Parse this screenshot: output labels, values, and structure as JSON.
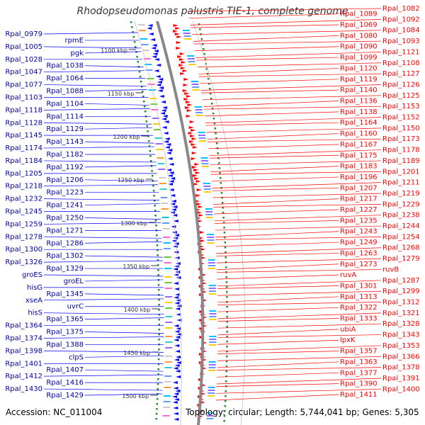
{
  "title": "Rhodopseudomonas palustris TIE-1, complete genome",
  "accession_text": "Accession: NC_011004",
  "topology_text": "Topology: circular; Length: 5,744,041 bp; Genes: 5,305",
  "colors": {
    "forward_strand": "#ff0000",
    "reverse_strand": "#0000ff",
    "forward_label": "#ff0000",
    "reverse_label": "#0000aa",
    "backbone": "#888888",
    "gc_ticks": "#228b22"
  },
  "kbp_ticks": [
    "1100 kbp",
    "1150 kbp",
    "1200 kbp",
    "1250 kbp",
    "1300 kbp",
    "1350 kbp",
    "1400 kbp",
    "1450 kbp",
    "1500 kbp"
  ],
  "left_labels": [
    "Rpal_0979",
    "rpmE",
    "Rpal_1005",
    "pgk",
    "Rpal_1028",
    "Rpal_1038",
    "Rpal_1047",
    "Rpal_1064",
    "Rpal_1077",
    "Rpal_1088",
    "Rpal_1103",
    "Rpal_1104",
    "Rpal_1118",
    "Rpal_1114",
    "Rpal_1128",
    "Rpal_1129",
    "Rpal_1145",
    "Rpal_1143",
    "Rpal_1174",
    "Rpal_1182",
    "Rpal_1184",
    "Rpal_1192",
    "Rpal_1205",
    "Rpal_1206",
    "Rpal_1218",
    "Rpal_1223",
    "Rpal_1232",
    "Rpal_1241",
    "Rpal_1245",
    "Rpal_1250",
    "Rpal_1259",
    "Rpal_1271",
    "Rpal_1278",
    "Rpal_1286",
    "Rpal_1300",
    "Rpal_1302",
    "Rpal_1326",
    "Rpal_1329",
    "groES",
    "groEL",
    "hisG",
    "Rpal_1345",
    "xseA",
    "uvrC",
    "hisS",
    "Rpal_1365",
    "Rpal_1364",
    "Rpal_1375",
    "Rpal_1374",
    "Rpal_1388",
    "Rpal_1398",
    "clpS",
    "Rpal_1401",
    "Rpal_1407",
    "Rpal_1412",
    "Rpal_1416",
    "Rpal_1430",
    "Rpal_1429"
  ],
  "right_labels": [
    "Rpal_1082",
    "Rpal_1089",
    "Rpal_1092",
    "Rpal_1069",
    "Rpal_1084",
    "Rpal_1080",
    "Rpal_1093",
    "Rpal_1090",
    "Rpal_1121",
    "Rpal_1099",
    "Rpal_1108",
    "Rpal_1120",
    "Rpal_1127",
    "Rpal_1119",
    "Rpal_1126",
    "Rpal_1140",
    "Rpal_1125",
    "Rpal_1136",
    "Rpal_1153",
    "Rpal_1138",
    "Rpal_1152",
    "Rpal_1164",
    "Rpal_1150",
    "Rpal_1160",
    "Rpal_1173",
    "Rpal_1167",
    "Rpal_1178",
    "Rpal_1175",
    "Rpal_1189",
    "Rpal_1183",
    "Rpal_1201",
    "Rpal_1196",
    "Rpal_1211",
    "Rpal_1207",
    "Rpal_1219",
    "Rpal_1217",
    "Rpal_1229",
    "Rpal_1227",
    "Rpal_1238",
    "Rpal_1235",
    "Rpal_1244",
    "Rpal_1243",
    "Rpal_1254",
    "Rpal_1249",
    "Rpal_1268",
    "Rpal_1263",
    "Rpal_1279",
    "Rpal_1273",
    "ruvB",
    "ruvA",
    "Rpal_1287",
    "Rpal_1301",
    "Rpal_1299",
    "Rpal_1313",
    "Rpal_1312",
    "Rpal_1322",
    "Rpal_1321",
    "Rpal_1333",
    "Rpal_1328",
    "ubiA",
    "Rpal_1343",
    "lpxK",
    "Rpal_1353",
    "Rpal_1357",
    "Rpal_1366",
    "Rpal_1363",
    "Rpal_1378",
    "Rpal_1377",
    "Rpal_1391",
    "Rpal_1390",
    "Rpal_1400",
    "Rpal_1411"
  ]
}
